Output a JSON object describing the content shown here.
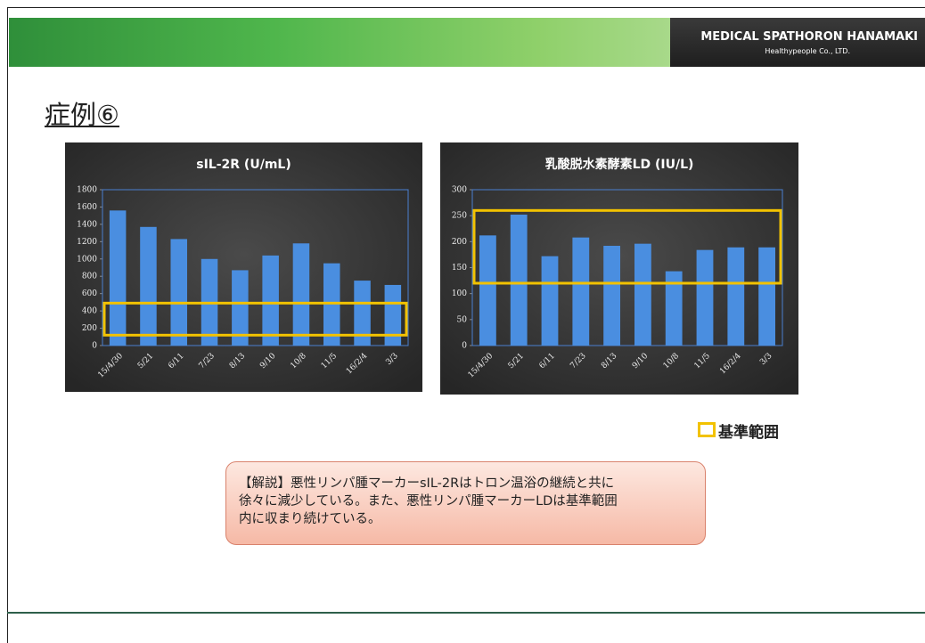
{
  "header": {
    "company": "MEDICAL SPATHORON HANAMAKI",
    "subtitle": "Healthypeople Co., LTD."
  },
  "title": "症例⑥",
  "chart_data": [
    {
      "type": "bar",
      "title": "sIL-2R (U/mL)",
      "categories": [
        "15/4/30",
        "5/21",
        "6/11",
        "7/23",
        "8/13",
        "9/10",
        "10/8",
        "11/5",
        "16/2/4",
        "3/3"
      ],
      "values": [
        1560,
        1370,
        1230,
        1000,
        870,
        1040,
        1180,
        950,
        750,
        700
      ],
      "color": "#4a8ee0",
      "ylim": [
        0,
        1800
      ],
      "yticks": [
        0,
        200,
        400,
        600,
        800,
        1000,
        1200,
        1400,
        1600,
        1800
      ],
      "reference_range": [
        120,
        490
      ],
      "reference_color": "#f2c200"
    },
    {
      "type": "bar",
      "title": "乳酸脱水素酵素LD (IU/L)",
      "categories": [
        "15/4/30",
        "5/21",
        "6/11",
        "7/23",
        "8/13",
        "9/10",
        "10/8",
        "11/5",
        "16/2/4",
        "3/3"
      ],
      "values": [
        212,
        252,
        172,
        208,
        192,
        196,
        143,
        184,
        189,
        189
      ],
      "color": "#4a8ee0",
      "ylim": [
        0,
        300
      ],
      "yticks": [
        0,
        50,
        100,
        150,
        200,
        250,
        300
      ],
      "reference_range": [
        120,
        260
      ],
      "reference_color": "#f2c200"
    }
  ],
  "legend": {
    "label": "基準範囲",
    "color": "#f2c200"
  },
  "comment": {
    "lines": [
      "【解説】悪性リンパ腫マーカーsIL-2Rはトロン温浴の継続と共に",
      "徐々に減少している。また、悪性リンパ腫マーカーLDは基準範囲",
      "内に収まり続けている。"
    ]
  }
}
